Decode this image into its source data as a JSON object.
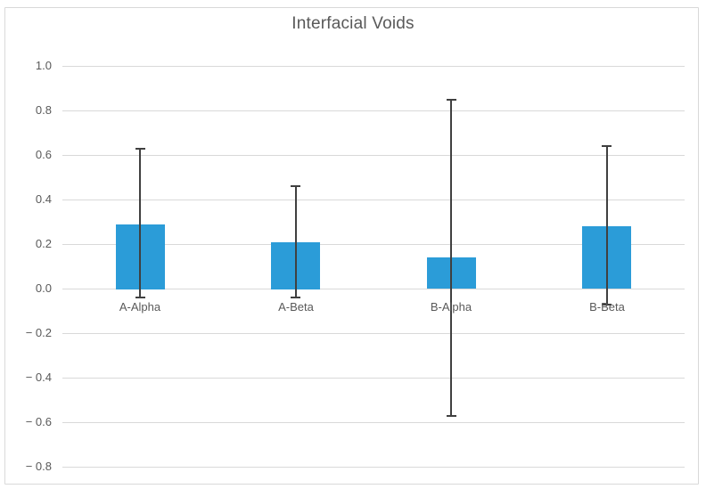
{
  "chart_data": {
    "type": "bar",
    "title": "Interfacial Voids",
    "categories": [
      "A-Alpha",
      "A-Beta",
      "B-Alpha",
      "B-Beta"
    ],
    "values": [
      0.29,
      0.21,
      0.14,
      0.28
    ],
    "error_bars": {
      "upper": [
        0.63,
        0.46,
        0.85,
        0.64
      ],
      "lower": [
        -0.04,
        -0.04,
        -0.57,
        -0.07
      ]
    },
    "ylim": [
      -0.8,
      1.0
    ],
    "ytick_step": 0.2,
    "yticks": [
      1.0,
      0.8,
      0.6,
      0.4,
      0.2,
      0.0,
      -0.2,
      -0.4,
      -0.6,
      -0.8
    ],
    "ytick_labels": [
      "1.0",
      "0.8",
      "0.6",
      "0.4",
      "0.2",
      "0.0",
      "− 0.2",
      "− 0.4",
      "− 0.6",
      "− 0.8"
    ],
    "xlabel": "",
    "ylabel": "",
    "grid": true,
    "legend": "none",
    "colors": {
      "bar": "#2b9cd8",
      "error_bar": "#404040",
      "gridline": "#d9d9d9",
      "text": "#595959",
      "border": "#d9d9d9",
      "background": "#ffffff"
    }
  }
}
